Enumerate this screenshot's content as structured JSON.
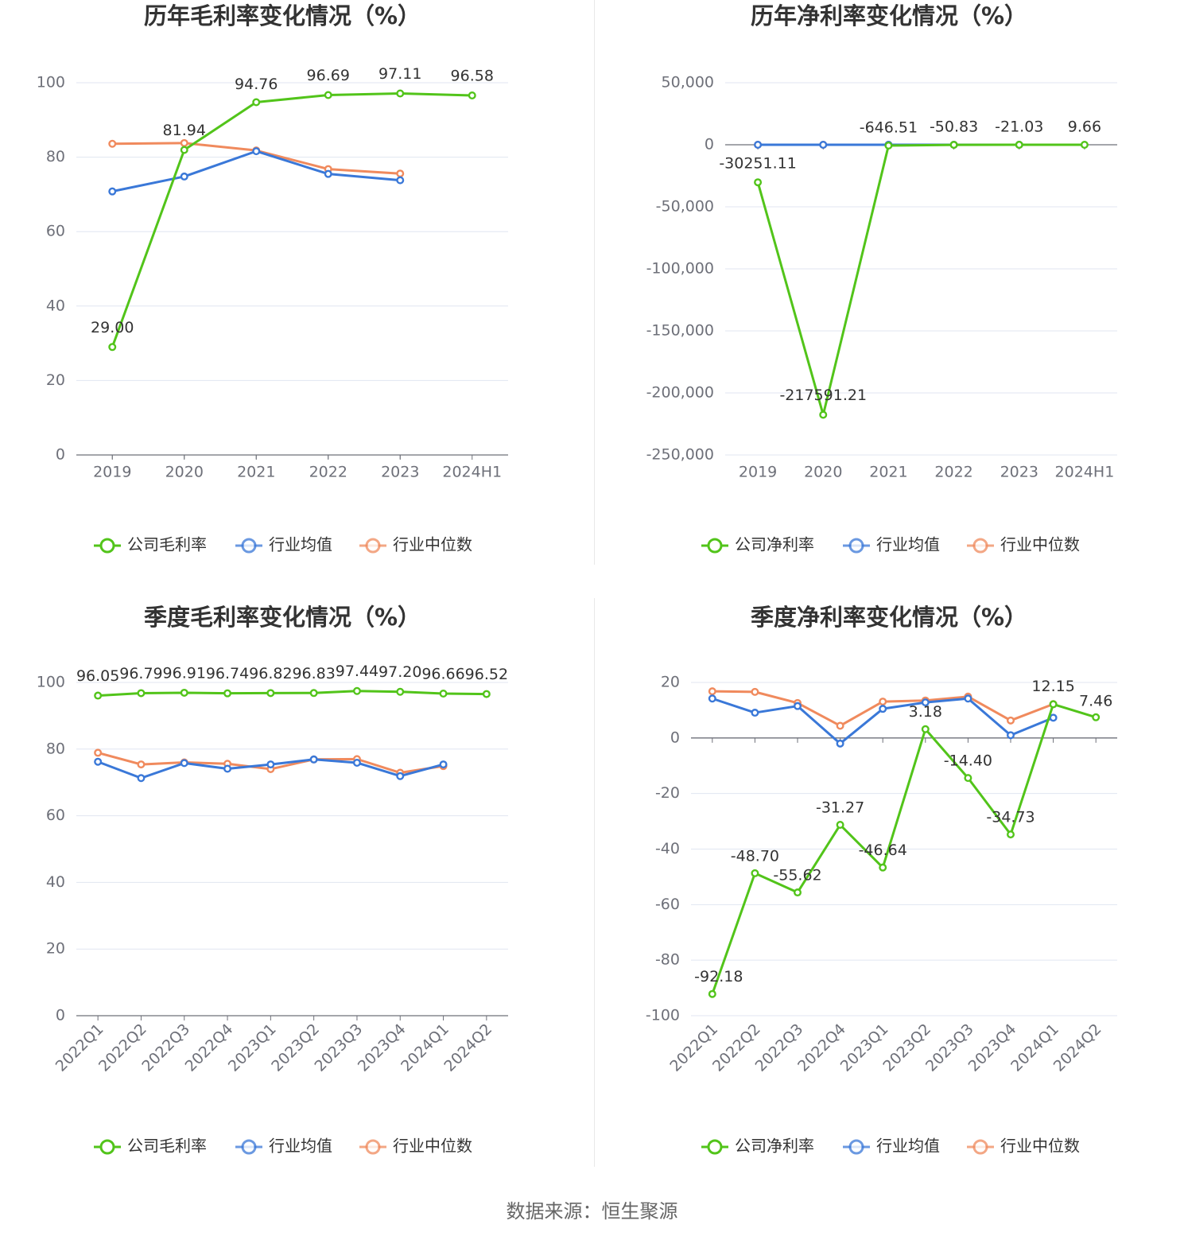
{
  "colors": {
    "company": "#52c41a",
    "industry_avg": "#3a78d8",
    "industry_median": "#f08a5d",
    "grid": "#e0e6f1",
    "axis": "#6e7079"
  },
  "source": "数据来源：恒生聚源",
  "charts": [
    {
      "title": "历年毛利率变化情况（%）",
      "legend": [
        "公司毛利率",
        "行业均值",
        "行业中位数"
      ],
      "chart_data": {
        "type": "line",
        "title": "历年毛利率变化情况（%）",
        "categories": [
          "2019",
          "2020",
          "2021",
          "2022",
          "2023",
          "2024H1"
        ],
        "yticks": [
          "0",
          "20",
          "40",
          "60",
          "80",
          "100"
        ],
        "ylim": [
          0,
          100
        ],
        "series": [
          {
            "name": "公司毛利率",
            "values": [
              29.0,
              81.94,
              94.76,
              96.69,
              97.11,
              96.58
            ],
            "labels": [
              "29.00",
              "81.94",
              "94.76",
              "96.69",
              "97.11",
              "96.58"
            ]
          },
          {
            "name": "行业均值",
            "values": [
              70.8,
              74.8,
              81.6,
              75.5,
              73.8,
              null
            ]
          },
          {
            "name": "行业中位数",
            "values": [
              83.6,
              83.8,
              81.8,
              76.8,
              75.6,
              null
            ]
          }
        ]
      }
    },
    {
      "title": "历年净利率变化情况（%）",
      "legend": [
        "公司净利率",
        "行业均值",
        "行业中位数"
      ],
      "chart_data": {
        "type": "line",
        "title": "历年净利率变化情况（%）",
        "categories": [
          "2019",
          "2020",
          "2021",
          "2022",
          "2023",
          "2024H1"
        ],
        "yticks": [
          "-250,000",
          "-200,000",
          "-150,000",
          "-100,000",
          "-50,000",
          "0",
          "50,000"
        ],
        "ylim": [
          -250000,
          50000
        ],
        "series": [
          {
            "name": "公司净利率",
            "values": [
              -30251.11,
              -217591.21,
              -646.51,
              -50.83,
              -21.03,
              9.66
            ],
            "labels": [
              "-30251.11",
              "-217591.21",
              "-646.51",
              "-50.83",
              "-21.03",
              "9.66"
            ]
          },
          {
            "name": "行业均值",
            "values": [
              5,
              5,
              10,
              5,
              5,
              null
            ]
          },
          {
            "name": "行业中位数",
            "values": [
              10,
              10,
              12,
              8,
              5,
              null
            ]
          }
        ]
      }
    },
    {
      "title": "季度毛利率变化情况（%）",
      "legend": [
        "公司毛利率",
        "行业均值",
        "行业中位数"
      ],
      "chart_data": {
        "type": "line",
        "title": "季度毛利率变化情况（%）",
        "categories": [
          "2022Q1",
          "2022Q2",
          "2022Q3",
          "2022Q4",
          "2023Q1",
          "2023Q2",
          "2023Q3",
          "2023Q4",
          "2024Q1",
          "2024Q2"
        ],
        "yticks": [
          "0",
          "20",
          "40",
          "60",
          "80",
          "100"
        ],
        "ylim": [
          0,
          100
        ],
        "series": [
          {
            "name": "公司毛利率",
            "values": [
              96.05,
              96.79,
              96.91,
              96.74,
              96.82,
              96.83,
              97.44,
              97.2,
              96.66,
              96.52
            ],
            "labels": [
              "96.05",
              "96.79",
              "96.91",
              "96.74",
              "96.82",
              "96.83",
              "97.44",
              "97.20",
              "96.66",
              "96.52"
            ]
          },
          {
            "name": "行业均值",
            "values": [
              76.2,
              71.3,
              75.8,
              74.1,
              75.4,
              76.9,
              75.9,
              71.9,
              75.4,
              null
            ]
          },
          {
            "name": "行业中位数",
            "values": [
              78.9,
              75.4,
              76.0,
              75.6,
              74.0,
              76.9,
              77.0,
              72.9,
              74.9,
              null
            ]
          }
        ]
      }
    },
    {
      "title": "季度净利率变化情况（%）",
      "legend": [
        "公司净利率",
        "行业均值",
        "行业中位数"
      ],
      "chart_data": {
        "type": "line",
        "title": "季度净利率变化情况（%）",
        "categories": [
          "2022Q1",
          "2022Q2",
          "2022Q3",
          "2022Q4",
          "2023Q1",
          "2023Q2",
          "2023Q3",
          "2023Q4",
          "2024Q1",
          "2024Q2"
        ],
        "yticks": [
          "-100",
          "-80",
          "-60",
          "-40",
          "-20",
          "0",
          "20"
        ],
        "ylim": [
          -100,
          20
        ],
        "series": [
          {
            "name": "公司净利率",
            "values": [
              -92.18,
              -48.7,
              -55.62,
              -31.27,
              -46.64,
              3.18,
              -14.4,
              -34.73,
              12.15,
              7.46
            ],
            "labels": [
              "-92.18",
              "-48.70",
              "-55.62",
              "-31.27",
              "-46.64",
              "3.18",
              "-14.40",
              "-34.73",
              "12.15",
              "7.46"
            ]
          },
          {
            "name": "行业均值",
            "values": [
              14.2,
              9.1,
              11.5,
              -2.0,
              10.5,
              12.8,
              14.2,
              1.0,
              7.3,
              null
            ]
          },
          {
            "name": "行业中位数",
            "values": [
              16.8,
              16.6,
              12.6,
              4.4,
              13.1,
              13.5,
              14.9,
              6.3,
              12.2,
              null
            ]
          }
        ]
      }
    }
  ]
}
